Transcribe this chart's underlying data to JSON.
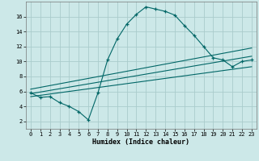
{
  "xlabel": "Humidex (Indice chaleur)",
  "bg_color": "#cce8e8",
  "line_color": "#006666",
  "grid_color": "#aacccc",
  "main_x": [
    0,
    1,
    2,
    3,
    4,
    5,
    6,
    7,
    8,
    9,
    10,
    11,
    12,
    13,
    14,
    15,
    16,
    17,
    18,
    19,
    20,
    21,
    22,
    23
  ],
  "main_y": [
    5.8,
    5.2,
    5.3,
    4.5,
    4.0,
    3.3,
    2.2,
    5.8,
    10.2,
    13.0,
    15.0,
    16.3,
    17.3,
    17.0,
    16.7,
    16.2,
    14.8,
    13.5,
    12.0,
    10.5,
    10.2,
    9.3,
    10.0,
    10.2
  ],
  "trend1_x": [
    0,
    23
  ],
  "trend1_y": [
    5.3,
    9.3
  ],
  "trend2_x": [
    0,
    23
  ],
  "trend2_y": [
    5.7,
    10.7
  ],
  "trend3_x": [
    0,
    23
  ],
  "trend3_y": [
    6.3,
    11.8
  ],
  "xlim": [
    -0.5,
    23.5
  ],
  "ylim": [
    1.0,
    18.0
  ],
  "yticks": [
    2,
    4,
    6,
    8,
    10,
    12,
    14,
    16
  ],
  "xticks": [
    0,
    1,
    2,
    3,
    4,
    5,
    6,
    7,
    8,
    9,
    10,
    11,
    12,
    13,
    14,
    15,
    16,
    17,
    18,
    19,
    20,
    21,
    22,
    23
  ],
  "xlabel_fontsize": 6.0,
  "tick_fontsize": 5.0
}
